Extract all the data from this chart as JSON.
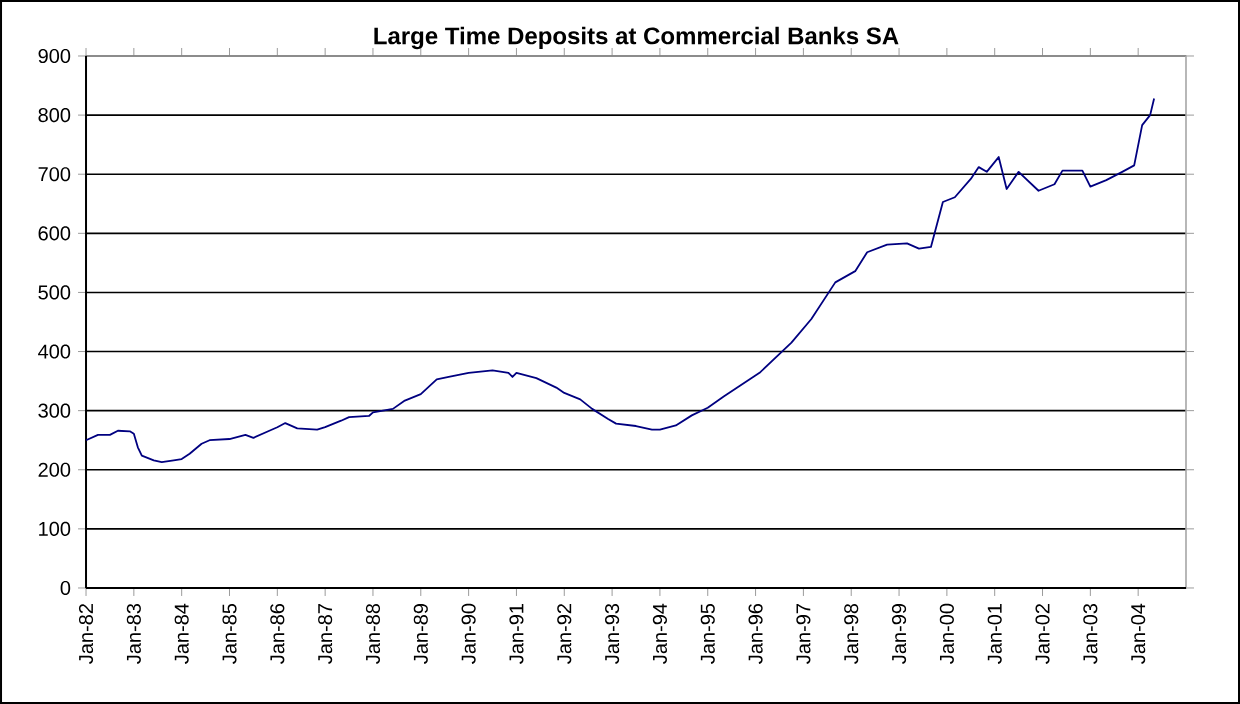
{
  "chart_data": {
    "type": "line",
    "title": "Large Time Deposits at Commercial Banks SA",
    "x": [
      "1982-01",
      "1982-04",
      "1982-07",
      "1982-09",
      "1982-12",
      "1983-01",
      "1983-02",
      "1983-03",
      "1983-06",
      "1983-08",
      "1983-11",
      "1984-01",
      "1984-03",
      "1984-06",
      "1984-08",
      "1985-01",
      "1985-05",
      "1985-07",
      "1985-11",
      "1986-01",
      "1986-03",
      "1986-06",
      "1986-11",
      "1987-01",
      "1987-05",
      "1987-07",
      "1987-12",
      "1988-01",
      "1988-06",
      "1988-09",
      "1989-01",
      "1989-05",
      "1989-08",
      "1990-01",
      "1990-07",
      "1990-11",
      "1990-12",
      "1991-01",
      "1991-06",
      "1991-11",
      "1992-01",
      "1992-05",
      "1992-08",
      "1992-12",
      "1993-02",
      "1993-07",
      "1993-11",
      "1994-01",
      "1994-05",
      "1994-09",
      "1995-01",
      "1995-05",
      "1996-02",
      "1996-10",
      "1997-03",
      "1997-09",
      "1998-02",
      "1998-05",
      "1998-10",
      "1999-03",
      "1999-06",
      "1999-09",
      "1999-12",
      "2000-03",
      "2000-07",
      "2000-09",
      "2000-11",
      "2001-02",
      "2001-04",
      "2001-07",
      "2001-12",
      "2002-04",
      "2002-06",
      "2002-11",
      "2003-01",
      "2003-05",
      "2003-09",
      "2003-12",
      "2004-02",
      "2004-04",
      "2004-05"
    ],
    "series": [
      {
        "color": "#000080",
        "values": [
          250,
          259,
          259,
          266,
          265,
          261,
          238,
          224,
          216,
          213,
          216,
          218,
          227,
          244,
          250,
          252,
          259,
          254,
          266,
          272,
          279,
          270,
          268,
          272,
          283,
          289,
          291,
          297,
          303,
          317,
          328,
          353,
          357,
          364,
          368,
          364,
          357,
          364,
          355,
          339,
          330,
          319,
          303,
          286,
          278,
          274,
          268,
          268,
          275,
          292,
          305,
          324,
          364,
          415,
          455,
          517,
          536,
          568,
          581,
          583,
          574,
          577,
          653,
          661,
          692,
          712,
          704,
          729,
          675,
          704,
          672,
          683,
          706,
          706,
          679,
          690,
          704,
          715,
          783,
          800,
          828
        ]
      }
    ],
    "xlim": [
      "1982-01",
      "2005-01"
    ],
    "ylim": [
      0,
      900
    ],
    "xticks": [
      {
        "value": "1982-01",
        "label": "Jan-82"
      },
      {
        "value": "1983-01",
        "label": "Jan-83"
      },
      {
        "value": "1984-01",
        "label": "Jan-84"
      },
      {
        "value": "1985-01",
        "label": "Jan-85"
      },
      {
        "value": "1986-01",
        "label": "Jan-86"
      },
      {
        "value": "1987-01",
        "label": "Jan-87"
      },
      {
        "value": "1988-01",
        "label": "Jan-88"
      },
      {
        "value": "1989-01",
        "label": "Jan-89"
      },
      {
        "value": "1990-01",
        "label": "Jan-90"
      },
      {
        "value": "1991-01",
        "label": "Jan-91"
      },
      {
        "value": "1992-01",
        "label": "Jan-92"
      },
      {
        "value": "1993-01",
        "label": "Jan-93"
      },
      {
        "value": "1994-01",
        "label": "Jan-94"
      },
      {
        "value": "1995-01",
        "label": "Jan-95"
      },
      {
        "value": "1996-01",
        "label": "Jan-96"
      },
      {
        "value": "1997-01",
        "label": "Jan-97"
      },
      {
        "value": "1998-01",
        "label": "Jan-98"
      },
      {
        "value": "1999-01",
        "label": "Jan-99"
      },
      {
        "value": "2000-01",
        "label": "Jan-00"
      },
      {
        "value": "2001-01",
        "label": "Jan-01"
      },
      {
        "value": "2002-01",
        "label": "Jan-02"
      },
      {
        "value": "2003-01",
        "label": "Jan-03"
      },
      {
        "value": "2004-01",
        "label": "Jan-04"
      }
    ],
    "yticks": [
      0,
      100,
      200,
      300,
      400,
      500,
      600,
      700,
      800,
      900
    ],
    "grid": "y",
    "marker": "none",
    "line_style": "solid"
  }
}
